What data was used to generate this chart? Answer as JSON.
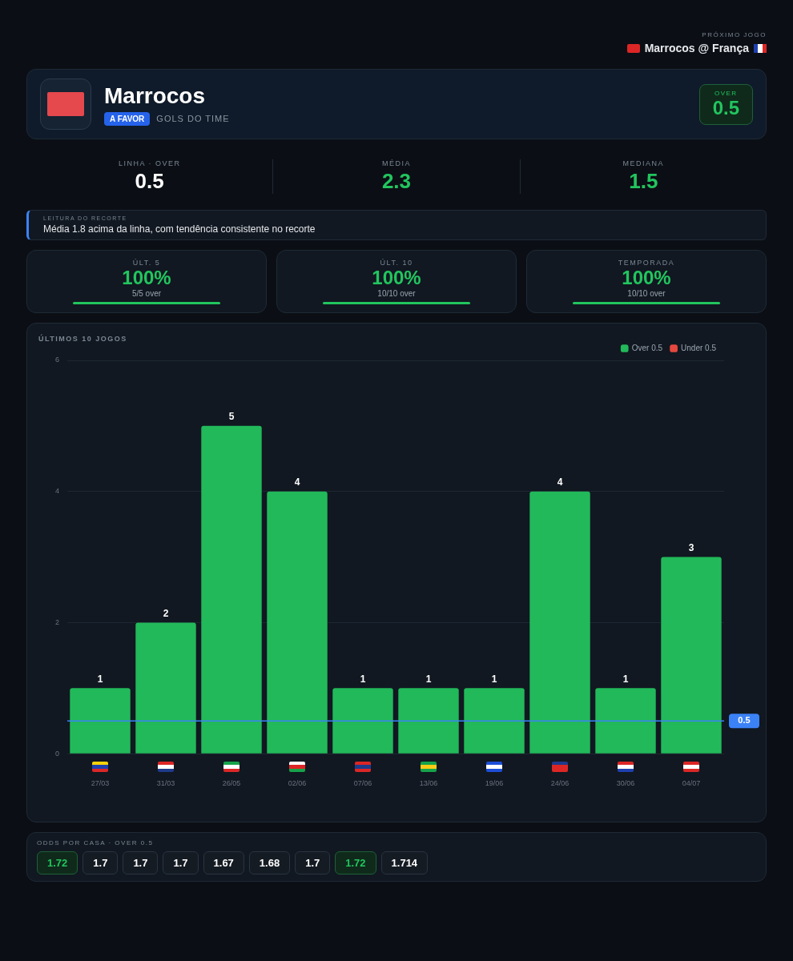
{
  "chart_data": {
    "type": "bar",
    "title": "ÚLTIMOS 10 JOGOS",
    "categories": [
      "27/03",
      "31/03",
      "26/05",
      "02/06",
      "07/06",
      "13/06",
      "19/06",
      "24/06",
      "30/06",
      "04/07"
    ],
    "series": [
      {
        "name": "Over 0.5",
        "color": "#22b95a",
        "values": [
          1,
          2,
          5,
          4,
          1,
          1,
          1,
          4,
          1,
          3
        ]
      },
      {
        "name": "Under 0.5",
        "color": "#e5483f",
        "values": [
          null,
          null,
          null,
          null,
          null,
          null,
          null,
          null,
          null,
          null
        ]
      }
    ],
    "ylim": [
      0,
      6
    ],
    "yticks": [
      0,
      2,
      4,
      6
    ],
    "grid": "y",
    "legend": "top right",
    "data_labels": true,
    "ref_lines": [
      {
        "axis": "y",
        "value": 0.5,
        "label": "0.5",
        "color": "#3b82f6"
      }
    ],
    "annotations": [
      "Marrocos",
      "A FAVOR",
      "GOLS DO TIME",
      "OVER",
      "0.5",
      "PRÓXIMO JOGO",
      "Marrocos @ França",
      "LINHA · OVER",
      "0.5",
      "MÉDIA",
      "2.3",
      "MEDIANA",
      "1.5",
      "LEITURA DO RECORTE",
      "Média 1.8 acima da linha, com tendência consistente no recorte",
      "ÚLT. 5",
      "100%",
      "5/5 over",
      "ÚLT. 10",
      "100%",
      "10/10 over",
      "TEMPORADA",
      "100%",
      "10/10 over",
      "ODDS POR CASA · OVER 0.5",
      "1.72",
      "1.7",
      "1.7",
      "1.7",
      "1.67",
      "1.68",
      "1.7",
      "1.72",
      "1.714"
    ]
  }
}
